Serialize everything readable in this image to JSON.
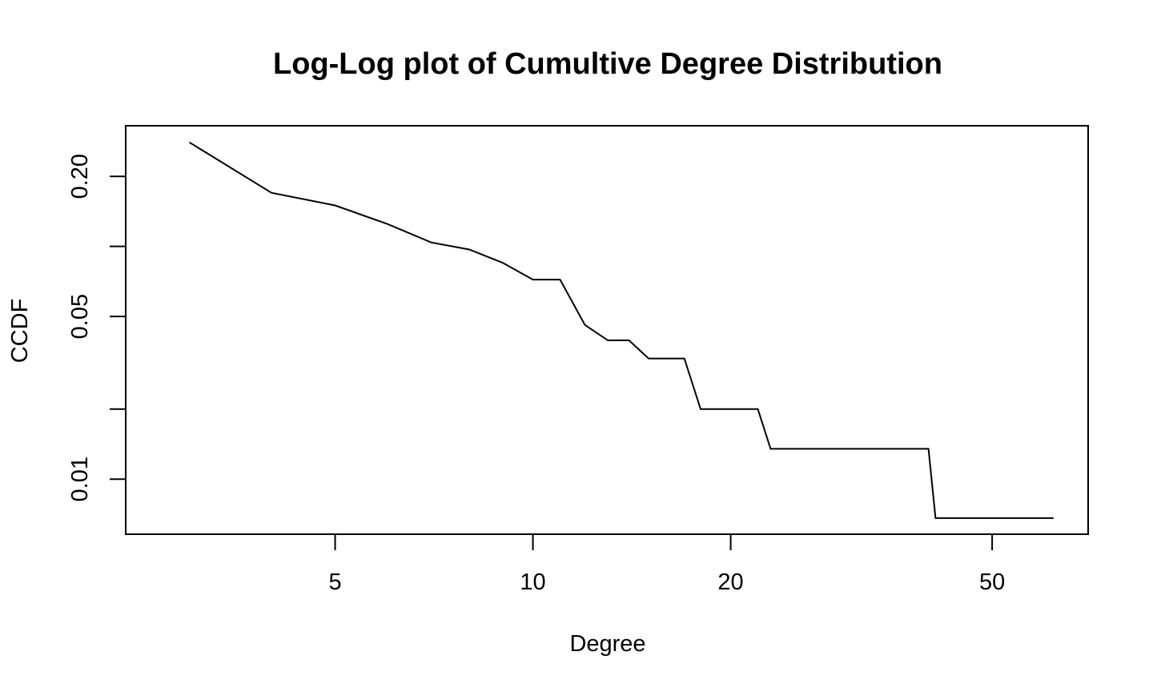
{
  "chart_data": {
    "type": "line",
    "title": "Log-Log plot of Cumultive Degree Distribution",
    "xlabel": "Degree",
    "ylabel": "CCDF",
    "log_x": true,
    "log_y": true,
    "xlim": [
      2.4,
      70
    ],
    "ylim": [
      0.0058,
      0.33
    ],
    "x_ticks": [
      {
        "value": 5,
        "label": "5"
      },
      {
        "value": 10,
        "label": "10"
      },
      {
        "value": 20,
        "label": "20"
      },
      {
        "value": 50,
        "label": "50"
      }
    ],
    "y_ticks": [
      {
        "value": 0.01,
        "label": "0.01"
      },
      {
        "value": 0.02,
        "label": ""
      },
      {
        "value": 0.05,
        "label": "0.05"
      },
      {
        "value": 0.1,
        "label": ""
      },
      {
        "value": 0.2,
        "label": "0.20"
      }
    ],
    "grid": false,
    "legend": "none",
    "series": [
      {
        "color": "#000000",
        "x": [
          3,
          4,
          5,
          6,
          7,
          8,
          9,
          10,
          11,
          12,
          13,
          14,
          15,
          17,
          18,
          22,
          23,
          40,
          41,
          62
        ],
        "y": [
          0.28,
          0.17,
          0.15,
          0.125,
          0.104,
          0.097,
          0.085,
          0.072,
          0.072,
          0.046,
          0.0395,
          0.0395,
          0.033,
          0.033,
          0.02,
          0.02,
          0.0135,
          0.0135,
          0.0068,
          0.0068
        ]
      }
    ]
  }
}
